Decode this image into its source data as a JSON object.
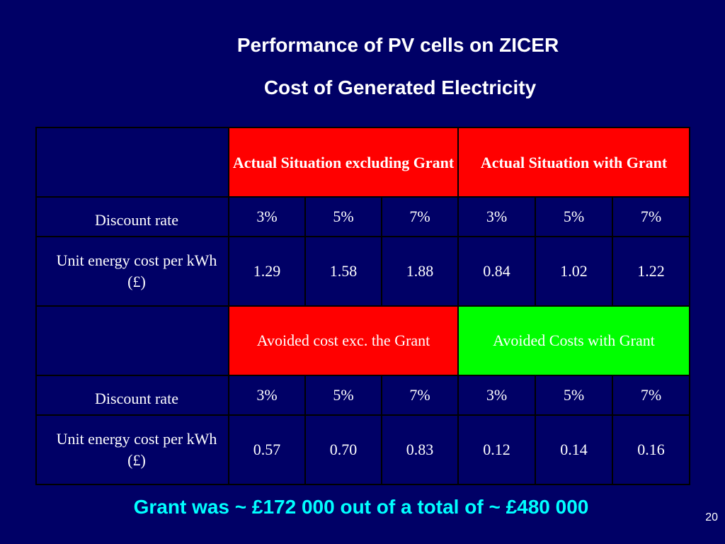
{
  "slide": {
    "title_line1": "Performance of PV cells on ZICER",
    "title_line2": "Cost of Generated Electricity",
    "footer": "Grant was ~ £172 000 out of a total of ~ £480 000",
    "page_number": "20"
  },
  "colors": {
    "background": "#000066",
    "red_header": "#ff0000",
    "green_header": "#00ff00",
    "label_text": "#ffff00",
    "rate_text": "#00ffff",
    "value_text": "#ffffff"
  },
  "table": {
    "section1": {
      "header_left": "Actual Situation excluding Grant",
      "header_right": "Actual Situation with Grant",
      "rate_label": "Discount rate",
      "rates": [
        "3%",
        "5%",
        "7%",
        "3%",
        "5%",
        "7%"
      ],
      "cost_label": "Unit energy cost per kWh (£)",
      "costs": [
        "1.29",
        "1.58",
        "1.88",
        "0.84",
        "1.02",
        "1.22"
      ]
    },
    "section2": {
      "header_left": "Avoided cost exc. the Grant",
      "header_right": "Avoided Costs with Grant",
      "rate_label": "Discount rate",
      "rates": [
        "3%",
        "5%",
        "7%",
        "3%",
        "5%",
        "7%"
      ],
      "cost_label": "Unit energy cost per kWh (£)",
      "costs": [
        "0.57",
        "0.70",
        "0.83",
        "0.12",
        "0.14",
        "0.16"
      ]
    }
  }
}
